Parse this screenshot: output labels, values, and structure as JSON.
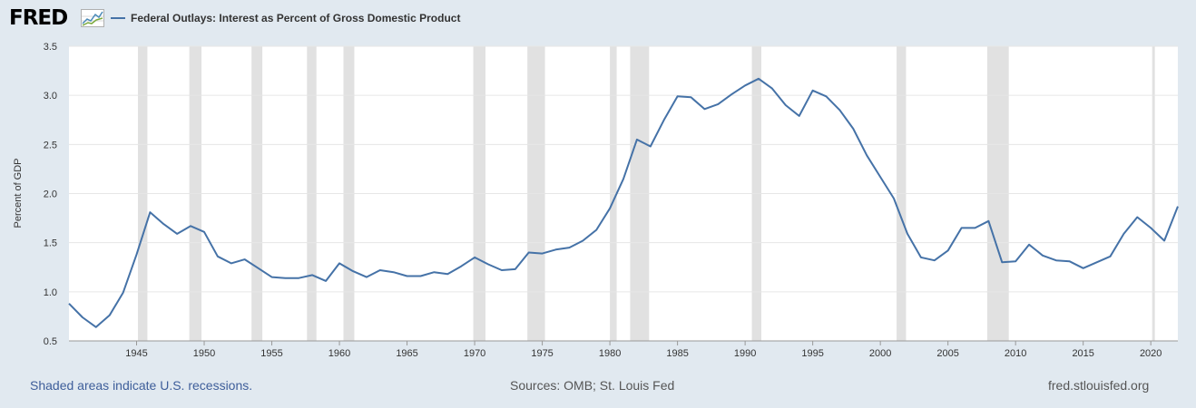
{
  "logo": {
    "text": "FRED"
  },
  "legend": {
    "label": "Federal Outlays: Interest as Percent of Gross Domestic Product",
    "color": "#4572a7"
  },
  "footer": {
    "recession_note": "Shaded areas indicate U.S. recessions.",
    "sources": "Sources: OMB; St. Louis Fed",
    "site": "fred.stlouisfed.org"
  },
  "chart_data": {
    "type": "line",
    "ylabel": "Percent of GDP",
    "xlabel": "",
    "ylim": [
      0.5,
      3.5
    ],
    "xlim": [
      1940,
      2022
    ],
    "grid": true,
    "y_ticks": [
      "0.5",
      "1.0",
      "1.5",
      "2.0",
      "2.5",
      "3.0",
      "3.5"
    ],
    "x_ticks": [
      "1945",
      "1950",
      "1955",
      "1960",
      "1965",
      "1970",
      "1975",
      "1980",
      "1985",
      "1990",
      "1995",
      "2000",
      "2005",
      "2010",
      "2015",
      "2020"
    ],
    "recessions": [
      [
        1945.1,
        1945.8
      ],
      [
        1948.9,
        1949.8
      ],
      [
        1953.5,
        1954.3
      ],
      [
        1957.6,
        1958.3
      ],
      [
        1960.3,
        1961.1
      ],
      [
        1969.9,
        1970.8
      ],
      [
        1973.9,
        1975.2
      ],
      [
        1980.0,
        1980.5
      ],
      [
        1981.5,
        1982.9
      ],
      [
        1990.5,
        1991.2
      ],
      [
        2001.2,
        2001.9
      ],
      [
        2007.9,
        2009.5
      ],
      [
        2020.1,
        2020.3
      ]
    ],
    "series": [
      {
        "name": "Federal Outlays: Interest as Percent of Gross Domestic Product",
        "color": "#4572a7",
        "x": [
          1940,
          1941,
          1942,
          1943,
          1944,
          1945,
          1946,
          1947,
          1948,
          1949,
          1950,
          1951,
          1952,
          1953,
          1954,
          1955,
          1956,
          1957,
          1958,
          1959,
          1960,
          1961,
          1962,
          1963,
          1964,
          1965,
          1966,
          1967,
          1968,
          1969,
          1970,
          1971,
          1972,
          1973,
          1974,
          1975,
          1976,
          1977,
          1978,
          1979,
          1980,
          1981,
          1982,
          1983,
          1984,
          1985,
          1986,
          1987,
          1988,
          1989,
          1990,
          1991,
          1992,
          1993,
          1994,
          1995,
          1996,
          1997,
          1998,
          1999,
          2000,
          2001,
          2002,
          2003,
          2004,
          2005,
          2006,
          2007,
          2008,
          2009,
          2010,
          2011,
          2012,
          2013,
          2014,
          2015,
          2016,
          2017,
          2018,
          2019,
          2020,
          2021,
          2022
        ],
        "values": [
          0.88,
          0.74,
          0.64,
          0.76,
          0.99,
          1.38,
          1.81,
          1.69,
          1.59,
          1.67,
          1.61,
          1.36,
          1.29,
          1.33,
          1.24,
          1.15,
          1.14,
          1.14,
          1.17,
          1.11,
          1.29,
          1.21,
          1.15,
          1.22,
          1.2,
          1.16,
          1.16,
          1.2,
          1.18,
          1.26,
          1.35,
          1.28,
          1.22,
          1.23,
          1.4,
          1.39,
          1.43,
          1.45,
          1.52,
          1.63,
          1.85,
          2.15,
          2.55,
          2.48,
          2.75,
          2.99,
          2.98,
          2.86,
          2.91,
          3.01,
          3.1,
          3.17,
          3.07,
          2.9,
          2.79,
          3.05,
          2.99,
          2.85,
          2.66,
          2.39,
          2.17,
          1.95,
          1.59,
          1.35,
          1.32,
          1.42,
          1.65,
          1.65,
          1.72,
          1.3,
          1.31,
          1.48,
          1.37,
          1.32,
          1.31,
          1.24,
          1.3,
          1.36,
          1.59,
          1.76,
          1.65,
          1.52,
          1.87
        ]
      }
    ]
  }
}
